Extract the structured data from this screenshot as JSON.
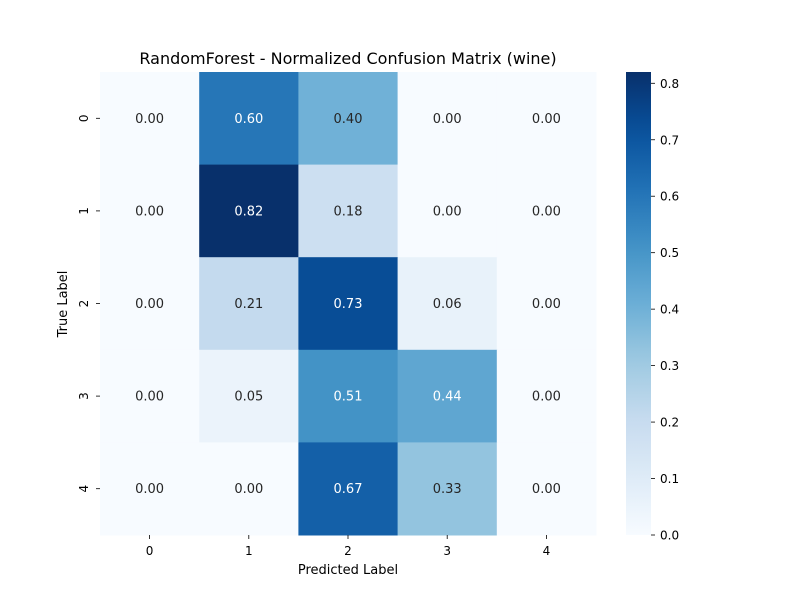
{
  "chart_data": {
    "type": "heatmap",
    "title": "RandomForest - Normalized Confusion Matrix (wine)",
    "xlabel": "Predicted Label",
    "ylabel": "True Label",
    "x_categories": [
      "0",
      "1",
      "2",
      "3",
      "4"
    ],
    "y_categories": [
      "0",
      "1",
      "2",
      "3",
      "4"
    ],
    "values": [
      [
        0.0,
        0.6,
        0.4,
        0.0,
        0.0
      ],
      [
        0.0,
        0.82,
        0.18,
        0.0,
        0.0
      ],
      [
        0.0,
        0.21,
        0.73,
        0.06,
        0.0
      ],
      [
        0.0,
        0.05,
        0.51,
        0.44,
        0.0
      ],
      [
        0.0,
        0.0,
        0.67,
        0.33,
        0.0
      ]
    ],
    "value_format": "0.00",
    "colormap": "Blues",
    "colorbar": {
      "range": [
        0.0,
        0.82
      ],
      "ticks": [
        0.0,
        0.1,
        0.2,
        0.3,
        0.4,
        0.5,
        0.6,
        0.7,
        0.8
      ],
      "tick_labels": [
        "0.0",
        "0.1",
        "0.2",
        "0.3",
        "0.4",
        "0.5",
        "0.6",
        "0.7",
        "0.8"
      ]
    },
    "grid": false,
    "colors": {
      "low": "#f7fbff",
      "high": "#08306b",
      "dark_text": "#262626",
      "light_text": "#ffffff"
    }
  }
}
